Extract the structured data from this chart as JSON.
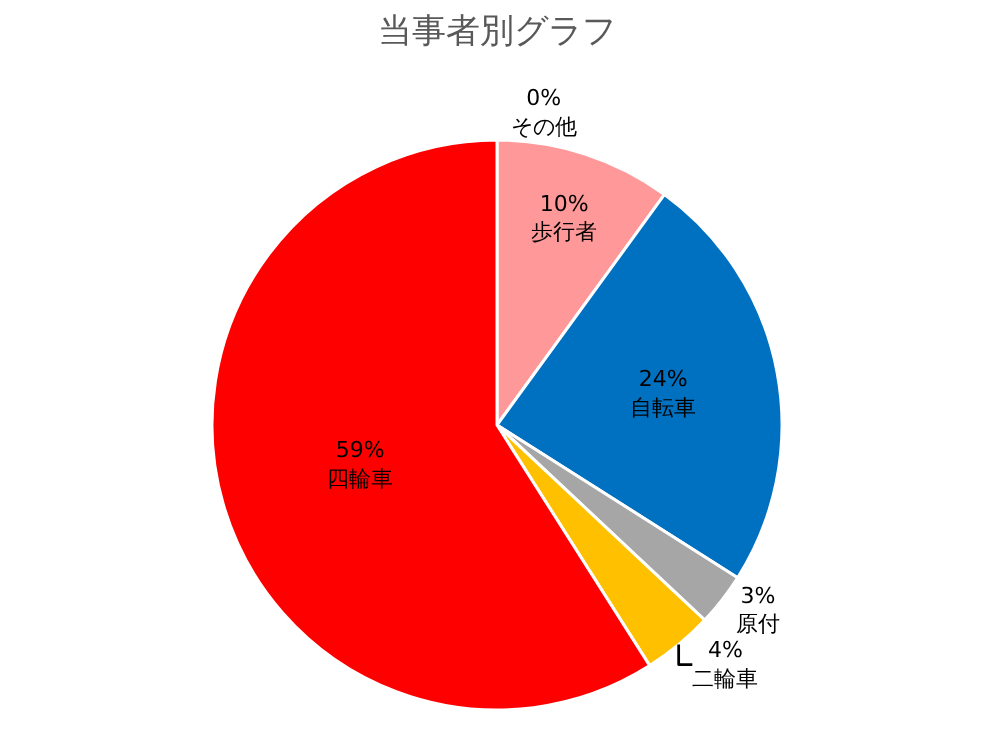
{
  "chart_data": {
    "type": "pie",
    "title": "当事者別グラフ",
    "categories": [
      "その他",
      "歩行者",
      "自転車",
      "原付",
      "二輪車",
      "四輪車"
    ],
    "values": [
      0,
      10,
      24,
      3,
      4,
      59
    ],
    "value_labels": [
      "0%",
      "10%",
      "24%",
      "3%",
      "4%",
      "59%"
    ],
    "colors": [
      "#7030a0",
      "#ff9999",
      "#0070c0",
      "#a6a6a6",
      "#ffc000",
      "#ff0000"
    ],
    "legend": false
  }
}
